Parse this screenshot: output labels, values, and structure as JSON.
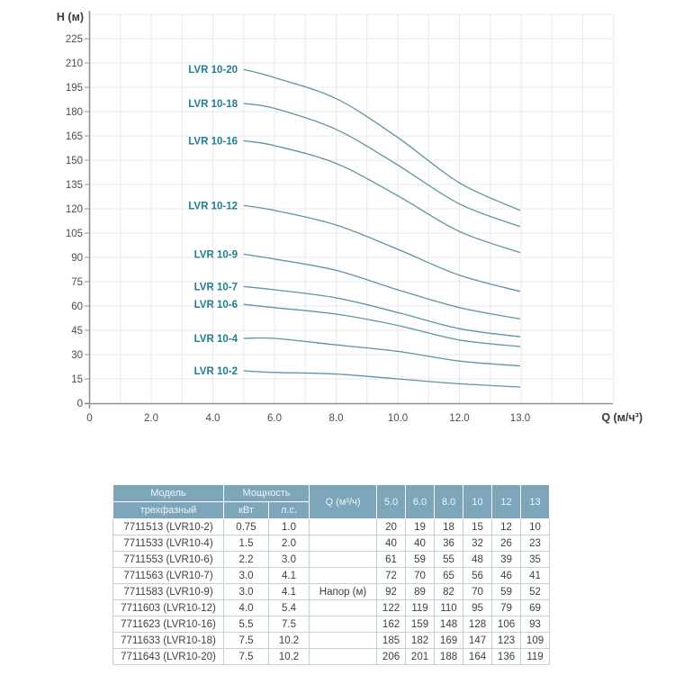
{
  "colors": {
    "curve": "#5f93a3",
    "curve_label": "#1f7e92",
    "grid": "#e9e9e9",
    "axis": "#919191",
    "tick_text": "#4c4c4c",
    "axis_title_text": "#3a3a3a",
    "header_bg": "#7ea6bb",
    "header_text": "#eef5f9",
    "table_border": "#bcd3df",
    "body_text": "#3f3f3f"
  },
  "chart_data": {
    "type": "line",
    "title": "",
    "xlabel": "Q (м/ч³)",
    "ylabel": "H (м)",
    "x": [
      5.0,
      6.0,
      8.0,
      10,
      12,
      13
    ],
    "series": [
      {
        "name": "LVR 10-2",
        "values": [
          20,
          19,
          18,
          15,
          12,
          10
        ]
      },
      {
        "name": "LVR 10-4",
        "values": [
          40,
          40,
          36,
          32,
          26,
          23
        ]
      },
      {
        "name": "LVR 10-6",
        "values": [
          61,
          59,
          55,
          48,
          39,
          35
        ]
      },
      {
        "name": "LVR 10-7",
        "values": [
          72,
          70,
          65,
          56,
          46,
          41
        ]
      },
      {
        "name": "LVR 10-9",
        "values": [
          92,
          89,
          82,
          70,
          59,
          52
        ]
      },
      {
        "name": "LVR 10-12",
        "values": [
          122,
          119,
          110,
          95,
          79,
          69
        ]
      },
      {
        "name": "LVR 10-16",
        "values": [
          162,
          159,
          148,
          128,
          106,
          93
        ]
      },
      {
        "name": "LVR 10-18",
        "values": [
          185,
          182,
          169,
          147,
          123,
          109
        ]
      },
      {
        "name": "LVR 10-20",
        "values": [
          206,
          201,
          188,
          164,
          136,
          119
        ]
      }
    ],
    "xlim": [
      0,
      17
    ],
    "ylim": [
      0,
      240
    ],
    "x_tick_values": [
      0,
      2,
      4,
      6,
      8,
      10,
      12,
      13
    ],
    "x_tick_labels": [
      "0",
      "2.0",
      "4.0",
      "6.0",
      "8.0",
      "10.0",
      "12.0",
      "13.0"
    ],
    "y_tick_values": [
      0,
      15,
      30,
      45,
      60,
      75,
      90,
      105,
      120,
      135,
      150,
      165,
      180,
      195,
      210,
      225
    ],
    "grid": true,
    "legend_position": "inline-left-of-curves"
  },
  "table": {
    "header": {
      "model_top": "Модель",
      "model_bottom": "трехфазный",
      "power": "Мощность",
      "kw": "кВт",
      "hp": "л.с.",
      "q": "Q (м³/ч)",
      "flow_cols": [
        "5.0",
        "6.0",
        "8.0",
        "10",
        "12",
        "13"
      ]
    },
    "rows": [
      {
        "model": "7711513 (LVR10-2)",
        "kw": "0.75",
        "hp": "1.0",
        "q": "",
        "values": [
          "20",
          "19",
          "18",
          "15",
          "12",
          "10"
        ]
      },
      {
        "model": "7711533 (LVR10-4)",
        "kw": "1.5",
        "hp": "2.0",
        "q": "",
        "values": [
          "40",
          "40",
          "36",
          "32",
          "26",
          "23"
        ]
      },
      {
        "model": "7711553 (LVR10-6)",
        "kw": "2.2",
        "hp": "3.0",
        "q": "",
        "values": [
          "61",
          "59",
          "55",
          "48",
          "39",
          "35"
        ]
      },
      {
        "model": "7711563 (LVR10-7)",
        "kw": "3.0",
        "hp": "4.1",
        "q": "",
        "values": [
          "72",
          "70",
          "65",
          "56",
          "46",
          "41"
        ]
      },
      {
        "model": "7711583 (LVR10-9)",
        "kw": "3.0",
        "hp": "4.1",
        "q": "Напор (м)",
        "values": [
          "92",
          "89",
          "82",
          "70",
          "59",
          "52"
        ]
      },
      {
        "model": "7711603 (LVR10-12)",
        "kw": "4.0",
        "hp": "5.4",
        "q": "",
        "values": [
          "122",
          "119",
          "110",
          "95",
          "79",
          "69"
        ]
      },
      {
        "model": "7711623 (LVR10-16)",
        "kw": "5.5",
        "hp": "7.5",
        "q": "",
        "values": [
          "162",
          "159",
          "148",
          "128",
          "106",
          "93"
        ]
      },
      {
        "model": "7711633 (LVR10-18)",
        "kw": "7.5",
        "hp": "10.2",
        "q": "",
        "values": [
          "185",
          "182",
          "169",
          "147",
          "123",
          "109"
        ]
      },
      {
        "model": "7711643 (LVR10-20)",
        "kw": "7.5",
        "hp": "10.2",
        "q": "",
        "values": [
          "206",
          "201",
          "188",
          "164",
          "136",
          "119"
        ]
      }
    ]
  }
}
